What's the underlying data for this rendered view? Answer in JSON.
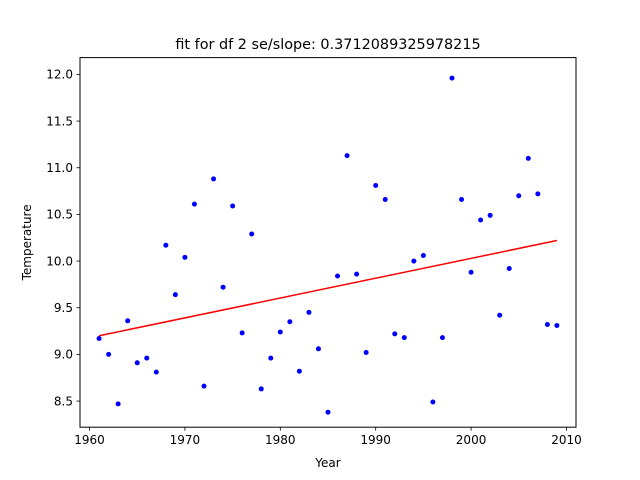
{
  "chart_data": {
    "type": "scatter",
    "title": "fit for df 2 se/slope: 0.3712089325978215",
    "xlabel": "Year",
    "ylabel": "Temperature",
    "xlim": [
      1959,
      2011
    ],
    "ylim": [
      8.22,
      12.18
    ],
    "x_ticks": [
      1960,
      1970,
      1980,
      1990,
      2000,
      2010
    ],
    "x_tick_labels": [
      "1960",
      "1970",
      "1980",
      "1990",
      "2000",
      "2010"
    ],
    "y_ticks": [
      8.5,
      9.0,
      9.5,
      10.0,
      10.5,
      11.0,
      11.5,
      12.0
    ],
    "y_tick_labels": [
      "8.5",
      "9.0",
      "9.5",
      "10.0",
      "10.5",
      "11.0",
      "11.5",
      "12.0"
    ],
    "grid": false,
    "series": [
      {
        "kind": "points",
        "color": "#0000ff",
        "x": [
          1961,
          1962,
          1963,
          1964,
          1965,
          1966,
          1967,
          1968,
          1969,
          1970,
          1971,
          1972,
          1973,
          1974,
          1975,
          1976,
          1977,
          1978,
          1979,
          1980,
          1981,
          1982,
          1983,
          1984,
          1985,
          1986,
          1987,
          1988,
          1989,
          1990,
          1991,
          1992,
          1993,
          1994,
          1995,
          1996,
          1997,
          1998,
          1999,
          2000,
          2001,
          2002,
          2003,
          2004,
          2005,
          2006,
          2007,
          2008,
          2009
        ],
        "y": [
          9.17,
          9.0,
          8.47,
          9.36,
          8.91,
          8.96,
          8.81,
          10.17,
          9.64,
          10.04,
          10.61,
          8.66,
          10.88,
          9.72,
          10.59,
          9.23,
          10.29,
          8.63,
          8.96,
          9.24,
          9.35,
          8.82,
          9.45,
          9.06,
          8.38,
          9.84,
          11.13,
          9.86,
          9.02,
          10.81,
          10.66,
          9.22,
          9.18,
          10.0,
          10.06,
          8.49,
          9.18,
          11.96,
          10.66,
          9.88,
          10.44,
          10.49,
          9.42,
          9.92,
          10.7,
          11.1,
          10.72,
          9.32,
          9.31
        ]
      },
      {
        "kind": "line",
        "color": "#ff0000",
        "x": [
          1961,
          2009
        ],
        "y": [
          9.2,
          10.22
        ]
      }
    ]
  }
}
